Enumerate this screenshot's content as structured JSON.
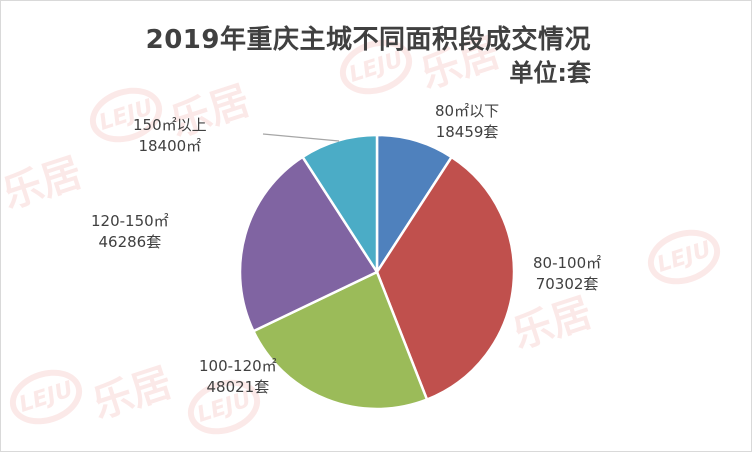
{
  "chart_data": {
    "type": "pie",
    "title": "2019年重庆主城不同面积段成交情况",
    "subtitle": "单位:套",
    "slices": [
      {
        "category": "80㎡以下",
        "value": 18459,
        "value_label": "18459套",
        "color": "#4f81bd"
      },
      {
        "category": "80-100㎡",
        "value": 70302,
        "value_label": "70302套",
        "color": "#c0504d"
      },
      {
        "category": "100-120㎡",
        "value": 48021,
        "value_label": "48021套",
        "color": "#9bbb59"
      },
      {
        "category": "120-150㎡",
        "value": 46286,
        "value_label": "46286套",
        "color": "#8064a2"
      },
      {
        "category": "150㎡以上",
        "value": 18400,
        "value_label": "18400㎡",
        "color": "#4bacc6"
      }
    ],
    "start_angle": "12 o'clock",
    "direction": "clockwise",
    "legend": "none"
  },
  "watermark": {
    "logo_text": "LEJU",
    "brand_text": "乐居"
  }
}
